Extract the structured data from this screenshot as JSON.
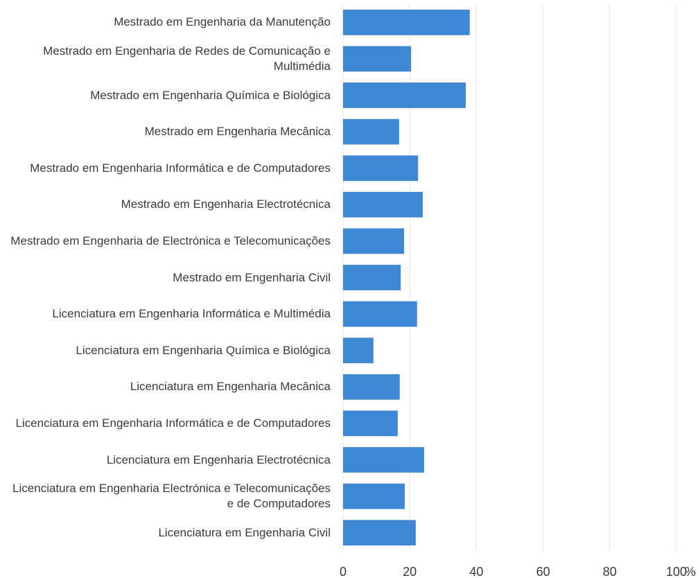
{
  "chart_data": {
    "type": "bar",
    "orientation": "horizontal",
    "categories": [
      "Mestrado em Engenharia da Manutenção",
      "Mestrado em Engenharia de Redes de Comunicação e Multimédia",
      "Mestrado em Engenharia Química e Biológica",
      "Mestrado em Engenharia Mecânica",
      "Mestrado em Engenharia Informática e de Computadores",
      "Mestrado em Engenharia Electrotécnica",
      "Mestrado em Engenharia de Electrónica e Telecomunicações",
      "Mestrado em Engenharia Civil",
      "Licenciatura em Engenharia Informática e Multimédia",
      "Licenciatura em Engenharia Química e Biológica",
      "Licenciatura em Engenharia Mecânica",
      "Licenciatura em Engenharia Informática e de Computadores",
      "Licenciatura em Engenharia Electrotécnica",
      "Licenciatura em Engenharia Electrónica e Telecomunicações e de Computadores",
      "Licenciatura em Engenharia Civil"
    ],
    "values": [
      38.0,
      20.4,
      36.8,
      16.8,
      22.5,
      23.9,
      18.3,
      17.3,
      22.2,
      9.1,
      17.0,
      16.4,
      24.3,
      18.5,
      21.8
    ],
    "color": "#3e87d4",
    "x_label": "%",
    "xlim": [
      0,
      100
    ],
    "xticks": [
      0,
      20,
      40,
      60,
      80,
      100
    ],
    "grid": true
  }
}
